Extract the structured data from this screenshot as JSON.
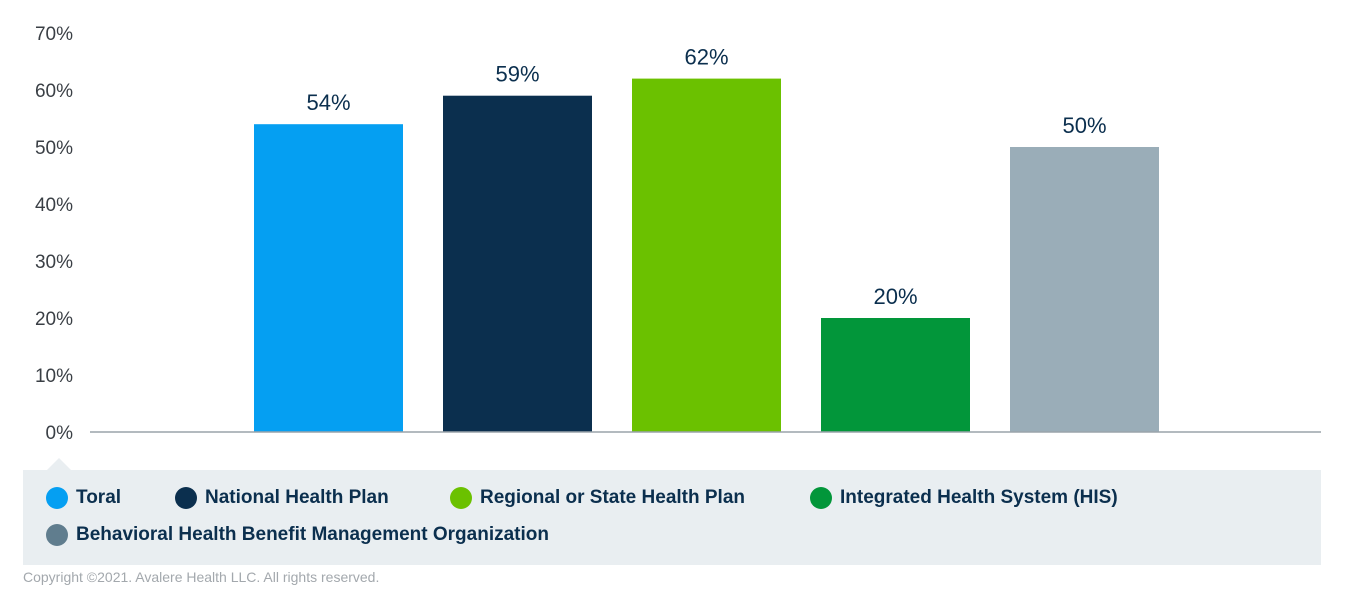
{
  "chart_data": {
    "type": "bar",
    "categories": [
      "Toral",
      "National Health Plan",
      "Regional or State Health Plan",
      "Integrated Health System (HIS)",
      "Behavioral Health Benefit Management Organization"
    ],
    "values": [
      54,
      59,
      62,
      20,
      50
    ],
    "value_labels": [
      "54%",
      "59%",
      "62%",
      "20%",
      "50%"
    ],
    "colors": [
      "#059ff2",
      "#0b2f4e",
      "#6bc100",
      "#02963a",
      "#9aadb8"
    ],
    "ylim": [
      0,
      70
    ],
    "yticks": [
      0,
      10,
      20,
      30,
      40,
      50,
      60,
      70
    ],
    "ytick_labels": [
      "0%",
      "10%",
      "20%",
      "30%",
      "40%",
      "50%",
      "60%",
      "70%"
    ],
    "title": "",
    "xlabel": "",
    "ylabel": "",
    "grid": false,
    "legend_position": "bottom"
  },
  "legend": {
    "items": [
      {
        "label": "Toral",
        "color": "#059ff2"
      },
      {
        "label": "National Health Plan",
        "color": "#0b2f4e"
      },
      {
        "label": "Regional or State Health Plan",
        "color": "#6bc100"
      },
      {
        "label": "Integrated Health System (HIS)",
        "color": "#02963a"
      },
      {
        "label": "Behavioral Health Benefit Management Organization",
        "color": "#607d8e"
      }
    ]
  },
  "footer": {
    "copyright": "Copyright ©2021. Avalere Health LLC. All rights reserved."
  }
}
